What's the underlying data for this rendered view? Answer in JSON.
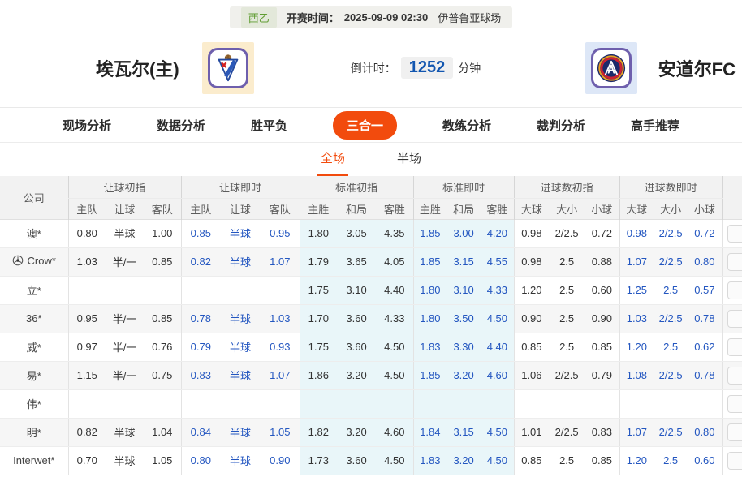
{
  "colors": {
    "accent": "#f24b0d",
    "live_text": "#2356c0",
    "league_green": "#5f9c31",
    "countdown_blue": "#1256b0",
    "standard_tint": "#e9f6f9"
  },
  "match_bar": {
    "league": "西乙",
    "kickoff_label": "开赛时间：",
    "kickoff_time": "2025-09-09 02:30",
    "venue": "伊普鲁亚球场"
  },
  "header": {
    "home_name": "埃瓦尔(主)",
    "away_name": "安道尔FC",
    "home_logo_icon": "eibar-crest-icon",
    "away_logo_icon": "andorra-crest-icon",
    "countdown_label": "倒计时：",
    "countdown_value": "1252",
    "countdown_unit": "分钟"
  },
  "nav_tabs": [
    {
      "name": "tab-live-analysis",
      "label": "现场分析",
      "active": false
    },
    {
      "name": "tab-data-analysis",
      "label": "数据分析",
      "active": false
    },
    {
      "name": "tab-win-draw-lose",
      "label": "胜平负",
      "active": false
    },
    {
      "name": "tab-three-in-one",
      "label": "三合一",
      "active": true
    },
    {
      "name": "tab-coach-analysis",
      "label": "教练分析",
      "active": false
    },
    {
      "name": "tab-referee-analysis",
      "label": "裁判分析",
      "active": false
    },
    {
      "name": "tab-expert-picks",
      "label": "高手推荐",
      "active": false
    }
  ],
  "sub_tabs": [
    {
      "name": "tab-full-match",
      "label": "全场",
      "active": true
    },
    {
      "name": "tab-half-match",
      "label": "半场",
      "active": false
    }
  ],
  "odds_table": {
    "company_header": "公司",
    "groups": [
      {
        "title": "让球初指",
        "cols": [
          "主队",
          "让球",
          "客队"
        ],
        "live": false,
        "tint": false
      },
      {
        "title": "让球即时",
        "cols": [
          "主队",
          "让球",
          "客队"
        ],
        "live": true,
        "tint": false
      },
      {
        "title": "标准初指",
        "cols": [
          "主胜",
          "和局",
          "客胜"
        ],
        "live": false,
        "tint": true
      },
      {
        "title": "标准即时",
        "cols": [
          "主胜",
          "和局",
          "客胜"
        ],
        "live": true,
        "tint": true
      },
      {
        "title": "进球数初指",
        "cols": [
          "大球",
          "大小",
          "小球"
        ],
        "live": false,
        "tint": false
      },
      {
        "title": "进球数即时",
        "cols": [
          "大球",
          "大小",
          "小球"
        ],
        "live": true,
        "tint": false
      }
    ],
    "rows": [
      {
        "company": "澳*",
        "icon": null,
        "odds": [
          [
            "0.80",
            "半球",
            "1.00"
          ],
          [
            "0.85",
            "半球",
            "0.95"
          ],
          [
            "1.80",
            "3.05",
            "4.35"
          ],
          [
            "1.85",
            "3.00",
            "4.20"
          ],
          [
            "0.98",
            "2/2.5",
            "0.72"
          ],
          [
            "0.98",
            "2/2.5",
            "0.72"
          ]
        ]
      },
      {
        "company": "Crow*",
        "icon": "soccer-ball-icon",
        "odds": [
          [
            "1.03",
            "半/一",
            "0.85"
          ],
          [
            "0.82",
            "半球",
            "1.07"
          ],
          [
            "1.79",
            "3.65",
            "4.05"
          ],
          [
            "1.85",
            "3.15",
            "4.55"
          ],
          [
            "0.98",
            "2.5",
            "0.88"
          ],
          [
            "1.07",
            "2/2.5",
            "0.80"
          ]
        ]
      },
      {
        "company": "立*",
        "icon": null,
        "odds": [
          [
            "",
            "",
            ""
          ],
          [
            "",
            "",
            ""
          ],
          [
            "1.75",
            "3.10",
            "4.40"
          ],
          [
            "1.80",
            "3.10",
            "4.33"
          ],
          [
            "1.20",
            "2.5",
            "0.60"
          ],
          [
            "1.25",
            "2.5",
            "0.57"
          ]
        ]
      },
      {
        "company": "36*",
        "icon": null,
        "odds": [
          [
            "0.95",
            "半/一",
            "0.85"
          ],
          [
            "0.78",
            "半球",
            "1.03"
          ],
          [
            "1.70",
            "3.60",
            "4.33"
          ],
          [
            "1.80",
            "3.50",
            "4.50"
          ],
          [
            "0.90",
            "2.5",
            "0.90"
          ],
          [
            "1.03",
            "2/2.5",
            "0.78"
          ]
        ]
      },
      {
        "company": "威*",
        "icon": null,
        "odds": [
          [
            "0.97",
            "半/一",
            "0.76"
          ],
          [
            "0.79",
            "半球",
            "0.93"
          ],
          [
            "1.75",
            "3.60",
            "4.50"
          ],
          [
            "1.83",
            "3.30",
            "4.40"
          ],
          [
            "0.85",
            "2.5",
            "0.85"
          ],
          [
            "1.20",
            "2.5",
            "0.62"
          ]
        ]
      },
      {
        "company": "易*",
        "icon": null,
        "odds": [
          [
            "1.15",
            "半/一",
            "0.75"
          ],
          [
            "0.83",
            "半球",
            "1.07"
          ],
          [
            "1.86",
            "3.20",
            "4.50"
          ],
          [
            "1.85",
            "3.20",
            "4.60"
          ],
          [
            "1.06",
            "2/2.5",
            "0.79"
          ],
          [
            "1.08",
            "2/2.5",
            "0.78"
          ]
        ]
      },
      {
        "company": "伟*",
        "icon": null,
        "odds": [
          [
            "",
            "",
            ""
          ],
          [
            "",
            "",
            ""
          ],
          [
            "",
            "",
            ""
          ],
          [
            "",
            "",
            ""
          ],
          [
            "",
            "",
            ""
          ],
          [
            "",
            "",
            ""
          ]
        ]
      },
      {
        "company": "明*",
        "icon": null,
        "odds": [
          [
            "0.82",
            "半球",
            "1.04"
          ],
          [
            "0.84",
            "半球",
            "1.05"
          ],
          [
            "1.82",
            "3.20",
            "4.60"
          ],
          [
            "1.84",
            "3.15",
            "4.50"
          ],
          [
            "1.01",
            "2/2.5",
            "0.83"
          ],
          [
            "1.07",
            "2/2.5",
            "0.80"
          ]
        ]
      },
      {
        "company": "Interwet*",
        "icon": null,
        "odds": [
          [
            "0.70",
            "半球",
            "1.05"
          ],
          [
            "0.80",
            "半球",
            "0.90"
          ],
          [
            "1.73",
            "3.60",
            "4.50"
          ],
          [
            "1.83",
            "3.20",
            "4.50"
          ],
          [
            "0.85",
            "2.5",
            "0.85"
          ],
          [
            "1.20",
            "2.5",
            "0.60"
          ]
        ]
      }
    ]
  }
}
